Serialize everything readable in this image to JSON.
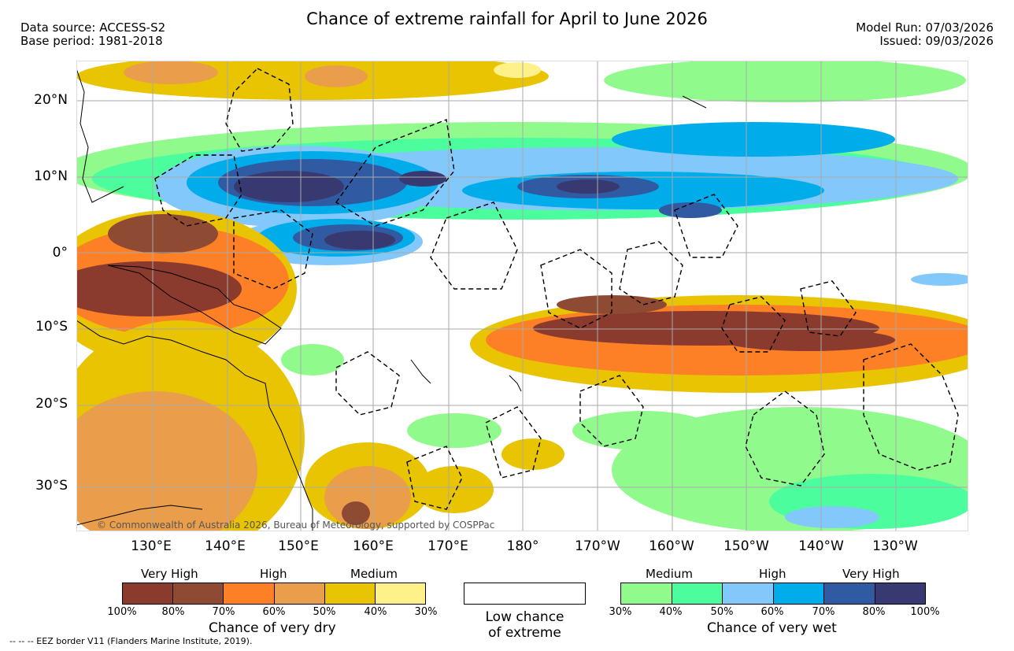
{
  "header": {
    "title": "Chance of extreme rainfall for April to June 2026",
    "data_source": "Data source: ACCESS-S2",
    "base_period": "Base period: 1981-2018",
    "model_run": "Model Run: 07/03/2026",
    "issued": "Issued: 09/03/2026"
  },
  "map": {
    "lat_labels": [
      "20°N",
      "10°N",
      "0°",
      "10°S",
      "20°S",
      "30°S"
    ],
    "lon_labels": [
      "130°E",
      "140°E",
      "150°E",
      "160°E",
      "170°E",
      "180°",
      "170°W",
      "160°W",
      "150°W",
      "140°W",
      "130°W"
    ],
    "copyright": "© Commonwealth of Australia 2026, Bureau of Meteorology, supported by COSPPac"
  },
  "legend": {
    "dry": {
      "categories": [
        "Very High",
        "High",
        "Medium"
      ],
      "colors": [
        "#8b3a2e",
        "#8f4a33",
        "#fd7f26",
        "#ea9e4b",
        "#e8c402",
        "#fef18a"
      ],
      "ticks": [
        "100%",
        "80%",
        "70%",
        "60%",
        "50%",
        "40%",
        "30%"
      ],
      "title": "Chance of very dry"
    },
    "low": {
      "line1": "Low chance",
      "line2": "of extreme"
    },
    "wet": {
      "categories": [
        "Medium",
        "High",
        "Very High"
      ],
      "colors": [
        "#90fa8d",
        "#4cfd9e",
        "#82c8fb",
        "#00adea",
        "#305aa1",
        "#393972"
      ],
      "ticks": [
        "30%",
        "40%",
        "50%",
        "60%",
        "70%",
        "80%",
        "100%"
      ],
      "title": "Chance of very wet"
    }
  },
  "footnote": "--  --  -- EEZ border V11 (Flanders Marine Institute, 2019)."
}
